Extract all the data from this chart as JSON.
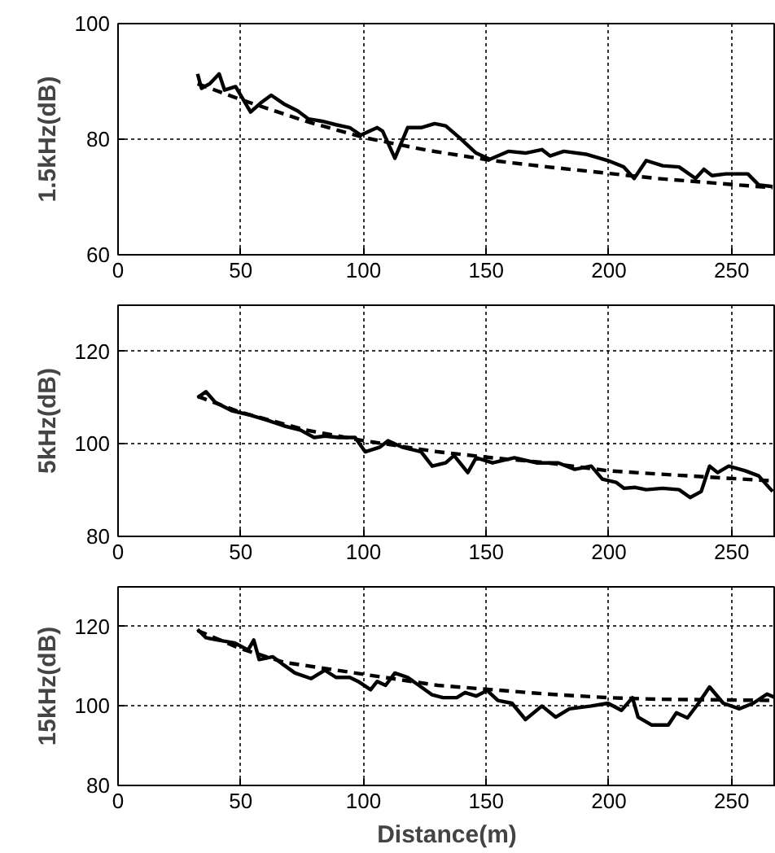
{
  "chart_data": [
    {
      "type": "line",
      "ylabel": "1.5kHz(dB)",
      "xlim": [
        0,
        268
      ],
      "ylim": [
        60,
        100
      ],
      "xticks": [
        0,
        50,
        100,
        150,
        200,
        250
      ],
      "yticks": [
        60,
        80,
        100
      ],
      "grid": true,
      "series": [
        {
          "color": "#000000",
          "line_style": "solid",
          "x": [
            32.4,
            34,
            37.4,
            41.2,
            43.4,
            47.9,
            54,
            58.2,
            62.4,
            67.6,
            73.2,
            77.6,
            83.2,
            88.8,
            94.4,
            98.9,
            105.6,
            107.8,
            112.8,
            118,
            123.5,
            129,
            133.5,
            139,
            145.9,
            151.5,
            159,
            166,
            172.7,
            176,
            181.6,
            190.6,
            199.6,
            206,
            210.3,
            215.2,
            221.9,
            228.6,
            235.3,
            238.7,
            242,
            247.7,
            256.6,
            261,
            266.7
          ],
          "values": [
            91.3,
            88.8,
            89.6,
            91.3,
            88.5,
            89.1,
            84.7,
            86.3,
            87.6,
            86.1,
            84.9,
            83.5,
            83.1,
            82.5,
            82,
            80.7,
            82,
            81.4,
            76.7,
            82,
            82,
            82.7,
            82.3,
            80.3,
            77.6,
            76.5,
            77.9,
            77.6,
            78.2,
            77.1,
            77.9,
            77.4,
            76.3,
            75.2,
            73.2,
            76.3,
            75.4,
            75.2,
            73.2,
            74.8,
            73.7,
            74,
            74,
            72.1,
            71.8
          ]
        },
        {
          "color": "#000000",
          "line_style": "dashed",
          "x": [
            32.4,
            49.7,
            76.5,
            100,
            125.7,
            152.6,
            175,
            199.6,
            219.7,
            266.7
          ],
          "values": [
            89.6,
            86.9,
            83.1,
            80.3,
            78.1,
            76.3,
            75.2,
            74.1,
            73.2,
            71.6
          ]
        }
      ]
    },
    {
      "type": "line",
      "ylabel": "5kHz(dB)",
      "xlim": [
        0,
        268
      ],
      "ylim": [
        80,
        130
      ],
      "xticks": [
        0,
        50,
        100,
        150,
        200,
        250
      ],
      "yticks": [
        80,
        100,
        120
      ],
      "grid": true,
      "series": [
        {
          "color": "#000000",
          "line_style": "solid",
          "x": [
            32.4,
            35.8,
            39.6,
            46.3,
            54,
            60.9,
            67.6,
            74.3,
            79.9,
            84.3,
            89.9,
            96.6,
            100.7,
            106.7,
            110,
            115.7,
            123.5,
            128,
            133.5,
            136.9,
            142.5,
            145.9,
            152.6,
            161.5,
            170.5,
            179.4,
            186.1,
            192.8,
            197.3,
            202.9,
            206.2,
            210.7,
            215.2,
            221.9,
            228.6,
            233.1,
            237.6,
            241,
            244.3,
            248.8,
            255.5,
            261,
            266.7
          ],
          "values": [
            110,
            111.3,
            109,
            107.2,
            106.2,
            105.1,
            103.9,
            103,
            101.4,
            101.7,
            101.4,
            101.4,
            98.3,
            99.3,
            100.7,
            99.3,
            98.3,
            95.2,
            95.9,
            97.5,
            93.8,
            97,
            95.9,
            97,
            95.9,
            95.9,
            94.5,
            95.2,
            92.4,
            91.7,
            90.4,
            90.6,
            90.1,
            90.4,
            90.1,
            88.4,
            89.7,
            95.2,
            93.8,
            95.2,
            94.2,
            93.1,
            89.7
          ]
        },
        {
          "color": "#000000",
          "line_style": "dashed",
          "x": [
            32.4,
            49.7,
            76.5,
            100,
            130.2,
            152.6,
            175,
            199.6,
            219.7,
            266.7
          ],
          "values": [
            110.3,
            106.9,
            103,
            100.7,
            98.3,
            97,
            95.9,
            94.2,
            93.5,
            92
          ]
        }
      ]
    },
    {
      "type": "line",
      "ylabel": "15kHz(dB)",
      "xlabel": "Distance(m)",
      "xlim": [
        0,
        268
      ],
      "ylim": [
        80,
        130
      ],
      "xticks": [
        0,
        50,
        100,
        150,
        200,
        250
      ],
      "yticks": [
        80,
        100,
        120
      ],
      "grid": true,
      "series": [
        {
          "color": "#000000",
          "line_style": "solid",
          "x": [
            32.4,
            35.8,
            40.7,
            47.4,
            53,
            55.3,
            57.5,
            63.1,
            67.6,
            72.1,
            78.7,
            84.3,
            88.8,
            94.4,
            97.8,
            102.9,
            105.6,
            109,
            112.8,
            118,
            123.5,
            128,
            132.4,
            138,
            141.4,
            145.9,
            150.4,
            154.8,
            160.5,
            166,
            172.7,
            178.3,
            183.9,
            192.8,
            199.6,
            205.1,
            209.6,
            211.9,
            217.5,
            224.2,
            227.5,
            232,
            236.5,
            241,
            246.6,
            253.2,
            258.8,
            264.4,
            267.8
          ],
          "values": [
            119.3,
            117.2,
            116.6,
            115.9,
            114.1,
            116.6,
            111.7,
            112.4,
            110.3,
            108.3,
            106.9,
            109,
            107.2,
            107.2,
            106.2,
            104.1,
            106.2,
            105.2,
            108.3,
            107.2,
            104.8,
            102.8,
            102.1,
            102.1,
            103.4,
            102.5,
            103.9,
            101.4,
            100.7,
            96.6,
            100,
            97.2,
            99.3,
            100,
            100.7,
            98.9,
            102.1,
            97.2,
            95.2,
            95.2,
            98.3,
            97,
            100.7,
            104.8,
            100.7,
            99.3,
            100.7,
            103,
            102.1
          ]
        },
        {
          "color": "#000000",
          "line_style": "dashed",
          "x": [
            32.4,
            49.7,
            67.6,
            100,
            130.2,
            152.6,
            175,
            199.6,
            219.7,
            266.7
          ],
          "values": [
            119,
            114.5,
            111,
            108,
            105.2,
            104.1,
            103,
            102.1,
            101.7,
            101.4
          ]
        }
      ]
    }
  ]
}
